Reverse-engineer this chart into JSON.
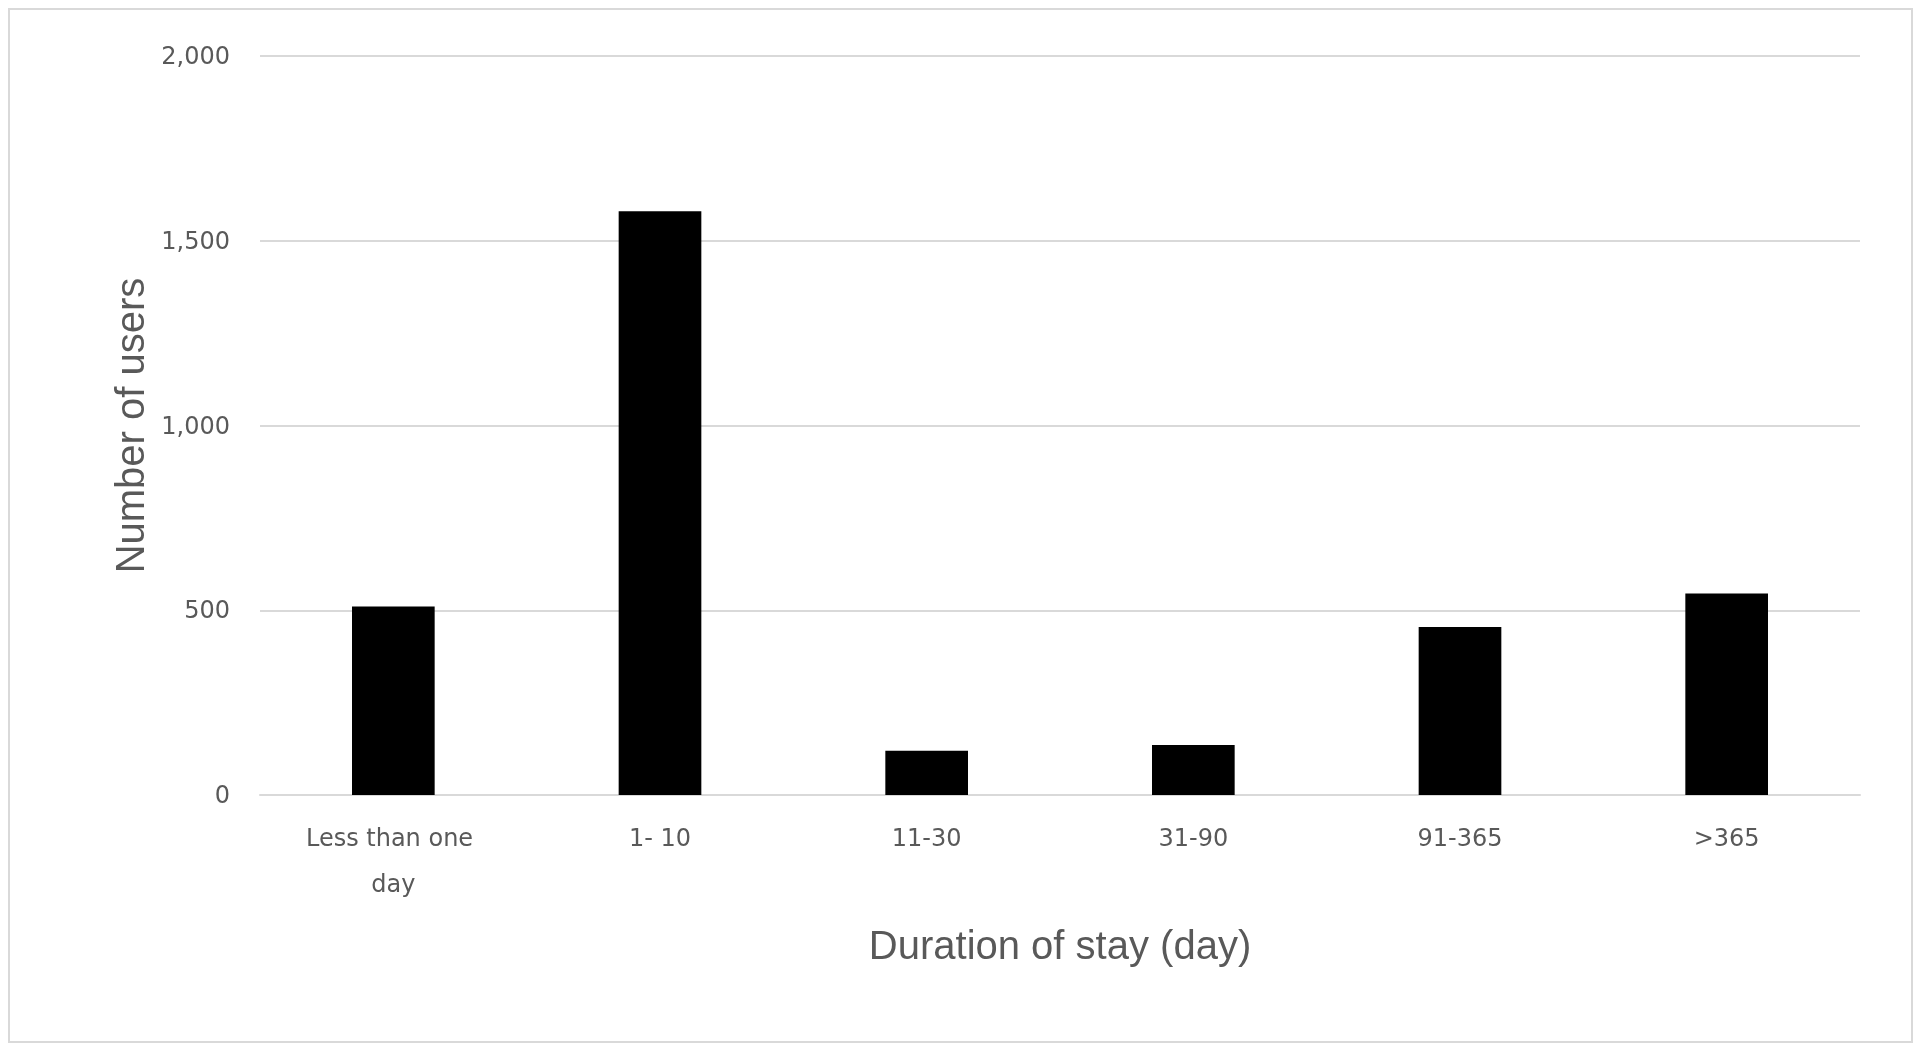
{
  "chart_data": {
    "type": "bar",
    "xlabel": "Duration of stay (day)",
    "ylabel": "Number of users",
    "categories": [
      "Less than one day",
      "1- 10",
      "11-30",
      "31-90",
      "91-365",
      ">365"
    ],
    "values": [
      510,
      1580,
      120,
      135,
      455,
      545
    ],
    "color": "#000000",
    "ylim": [
      0,
      2000
    ],
    "yticks": [
      0,
      500,
      {
        "value": 1000,
        "label": "1,000"
      },
      {
        "value": 1500,
        "label": "1,500"
      },
      {
        "value": 2000,
        "label": "2,000"
      }
    ],
    "grid": "y"
  }
}
